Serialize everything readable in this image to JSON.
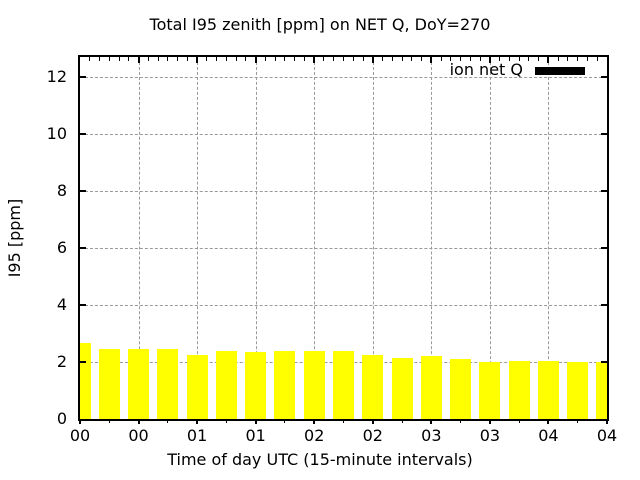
{
  "title": "Total I95 zenith [ppm] on NET Q, DoY=270",
  "axes": {
    "xlabel": "Time of day UTC (15-minute intervals)",
    "ylabel": "I95 [ppm]",
    "ytick_labels": [
      "0",
      "2",
      "4",
      "6",
      "8",
      "10",
      "12"
    ],
    "xtick_labels": [
      "00",
      "00",
      "01",
      "01",
      "02",
      "02",
      "03",
      "03",
      "04",
      "04"
    ]
  },
  "legend": {
    "label": "ion net Q",
    "swatch_color": "#000000",
    "position": "inside-top-right"
  },
  "colors": {
    "bar": "#ffff00",
    "grid": "#9a9a9a",
    "axis": "#000000",
    "background": "#ffffff"
  },
  "chart_data": {
    "type": "bar",
    "title": "Total I95 zenith [ppm] on NET Q, DoY=270",
    "xlabel": "Time of day UTC (15-minute intervals)",
    "ylabel": "I95 [ppm]",
    "series": [
      {
        "name": "ion net Q",
        "x_times": [
          "00:00",
          "00:15",
          "00:30",
          "00:45",
          "01:00",
          "01:15",
          "01:30",
          "01:45",
          "02:00",
          "02:15",
          "02:30",
          "02:45",
          "03:00",
          "03:15",
          "03:30",
          "03:45",
          "04:00",
          "04:15",
          "04:30"
        ],
        "x_minutes": [
          0,
          15,
          30,
          45,
          60,
          75,
          90,
          105,
          120,
          135,
          150,
          165,
          180,
          195,
          210,
          225,
          240,
          255,
          270
        ],
        "values": [
          2.65,
          2.45,
          2.45,
          2.45,
          2.25,
          2.4,
          2.35,
          2.4,
          2.4,
          2.4,
          2.25,
          2.15,
          2.2,
          2.1,
          2.0,
          2.05,
          2.05,
          2.0,
          2.0
        ]
      }
    ],
    "bar_color": "#ffff00",
    "bar_width_minutes": 10.8,
    "xlim_minutes": [
      0,
      270
    ],
    "ylim": [
      0,
      12.7
    ],
    "yticks": [
      0,
      2,
      4,
      6,
      8,
      10,
      12
    ],
    "xticks": {
      "minutes": [
        0,
        30,
        60,
        90,
        120,
        150,
        180,
        210,
        240,
        270
      ],
      "labels": [
        "00",
        "00",
        "01",
        "01",
        "02",
        "02",
        "03",
        "03",
        "04",
        "04"
      ]
    },
    "minor_xtick_step_minutes_top": 5,
    "minor_xtick_step_minutes_bottom": 15,
    "grid": "dashed",
    "legend_position": "inside-top-right"
  }
}
